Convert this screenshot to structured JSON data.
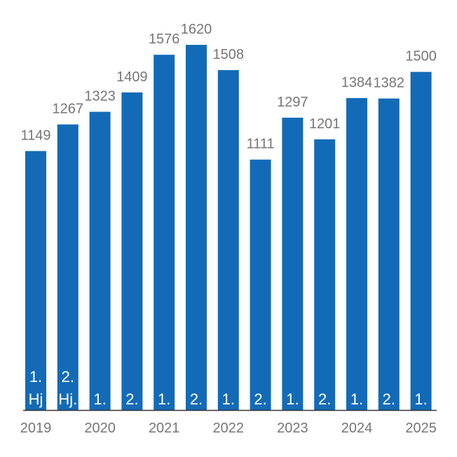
{
  "chart_data": {
    "type": "bar",
    "categories": [
      "2019 1. Hj",
      "2019 2. Hj",
      "2020 1.",
      "2020 2.",
      "2021 1.",
      "2021 2.",
      "2022 1.",
      "2022 2.",
      "2023 1.",
      "2023 2.",
      "2024 1.",
      "2024 2.",
      "2025 1."
    ],
    "values": [
      1149,
      1267,
      1323,
      1409,
      1576,
      1620,
      1508,
      1111,
      1297,
      1201,
      1384,
      1382,
      1500
    ],
    "value_labels": [
      "1149",
      "1267",
      "1323",
      "1409",
      "1576",
      "1620",
      "1508",
      "1111",
      "1297",
      "1201",
      "1384",
      "1382",
      "1500"
    ],
    "bar_labels": [
      [
        "1.",
        "Hj"
      ],
      [
        "2.",
        "Hj."
      ],
      [
        "1."
      ],
      [
        "2."
      ],
      [
        "1."
      ],
      [
        "2."
      ],
      [
        "1."
      ],
      [
        "2."
      ],
      [
        "1."
      ],
      [
        "2."
      ],
      [
        "1."
      ],
      [
        "2."
      ],
      [
        "1."
      ]
    ],
    "x_tick_labels": [
      {
        "label": "2019",
        "first_bar": 0
      },
      {
        "label": "2020",
        "first_bar": 2
      },
      {
        "label": "2021",
        "first_bar": 4
      },
      {
        "label": "2022",
        "first_bar": 6
      },
      {
        "label": "2023",
        "first_bar": 8
      },
      {
        "label": "2024",
        "first_bar": 10
      },
      {
        "label": "2025",
        "first_bar": 12
      }
    ],
    "title": "",
    "xlabel": "",
    "ylabel": "",
    "ylim": [
      0,
      1620
    ],
    "grid": false,
    "legend": "none",
    "colors": {
      "bar": "#136BB7",
      "baseline": "#333333",
      "value_label": "#767676",
      "inner_label": "#FFFFFF",
      "year_label": "#767676"
    }
  }
}
